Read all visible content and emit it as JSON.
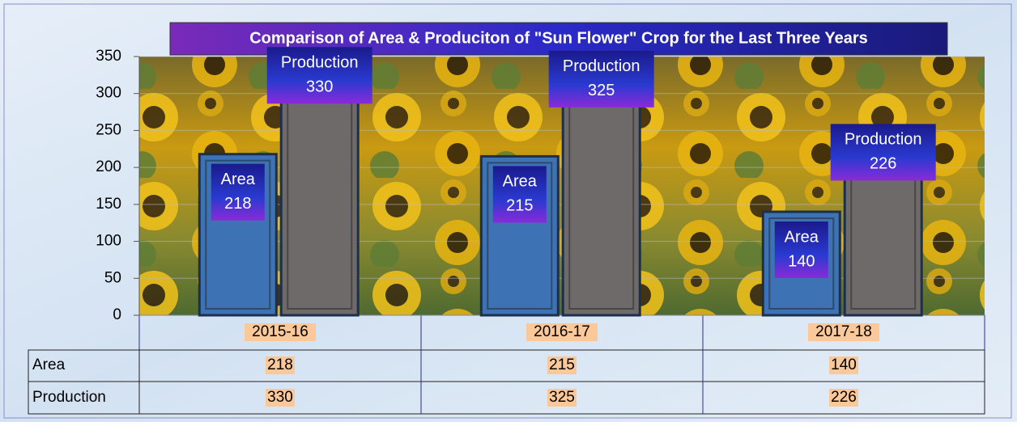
{
  "chart_data": {
    "type": "bar",
    "title": "Comparison of Area & Produciton of  \"Sun Flower\" Crop  for the Last Three Years",
    "categories": [
      "2015-16",
      "2016-17",
      "2017-18"
    ],
    "series": [
      {
        "name": "Area",
        "color": "#3d72b4",
        "values": [
          218,
          215,
          140
        ]
      },
      {
        "name": "Production",
        "color": "#6e6a6a",
        "values": [
          330,
          325,
          226
        ]
      }
    ],
    "ylim": [
      0,
      350
    ],
    "yticks": [
      0,
      50,
      100,
      150,
      200,
      250,
      300,
      350
    ],
    "grid": true
  }
}
